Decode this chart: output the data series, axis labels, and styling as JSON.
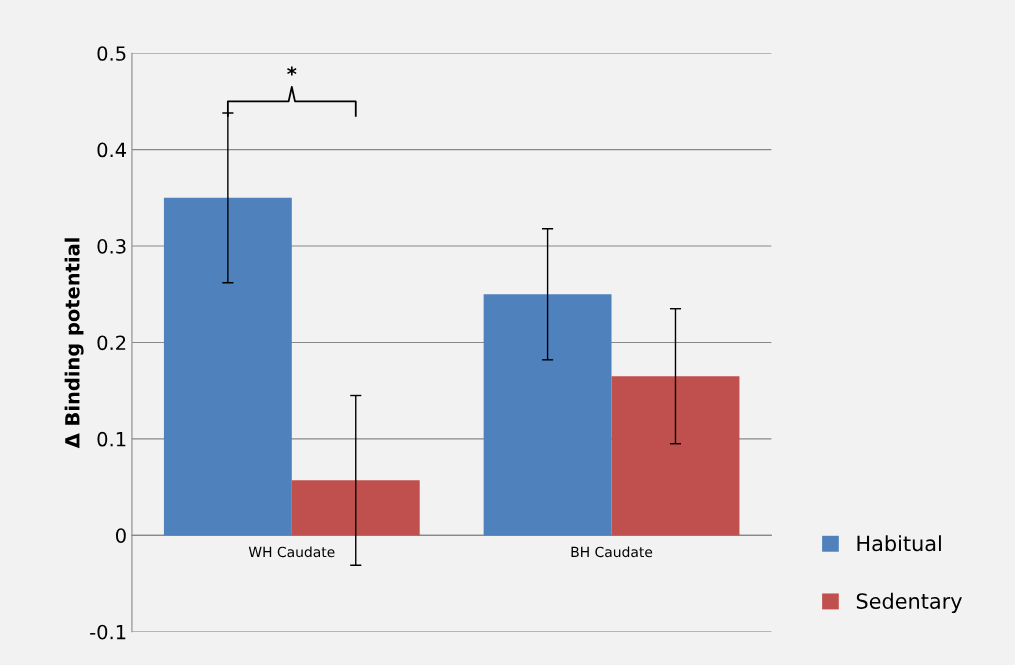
{
  "chart_data": {
    "type": "bar",
    "ylabel": "Δ Binding potential",
    "categories": [
      "WH Caudate",
      "BH Caudate"
    ],
    "series": [
      {
        "name": "Habitual",
        "color": "#4f81bd",
        "values": [
          0.35,
          0.25
        ],
        "errors": [
          0.088,
          0.068
        ]
      },
      {
        "name": "Sedentary",
        "color": "#c0504d",
        "values": [
          0.057,
          0.165
        ],
        "errors": [
          0.088,
          0.07
        ]
      }
    ],
    "ylim": [
      -0.1,
      0.5
    ],
    "yticks": [
      -0.1,
      0,
      0.1,
      0.2,
      0.3,
      0.4,
      0.5
    ],
    "grid": "y",
    "legend": "right",
    "annotations": [
      "*"
    ]
  }
}
